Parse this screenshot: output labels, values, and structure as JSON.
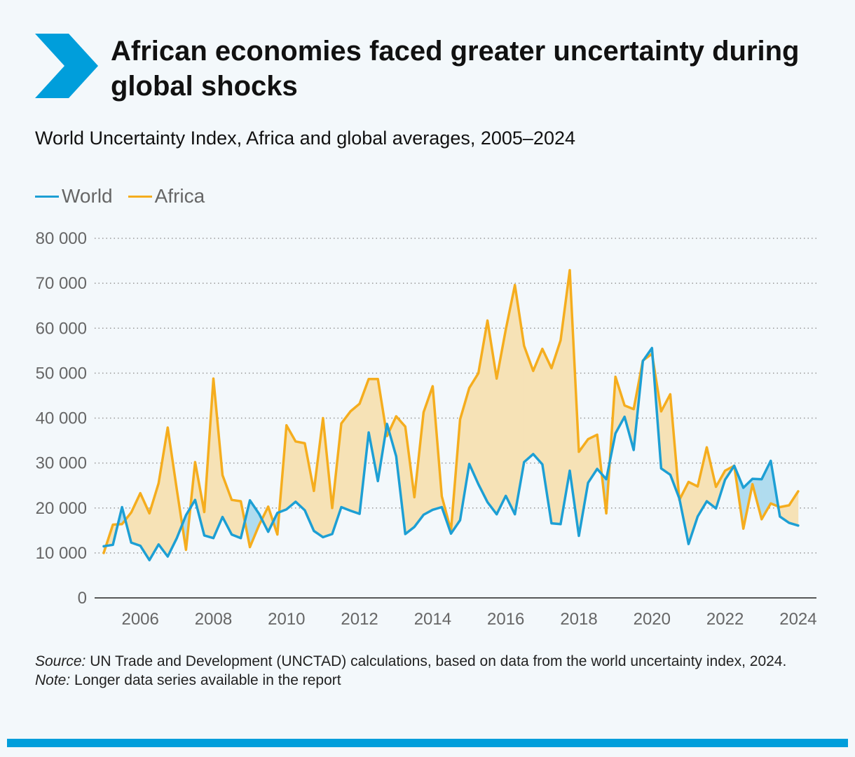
{
  "header": {
    "title": "African economies faced greater uncertainty during global shocks",
    "subtitle": "World Uncertainty Index, Africa and global averages, 2005–2024"
  },
  "colors": {
    "world": "#1d9fd4",
    "africa": "#f5ad1e",
    "africa_fill": "#f6e2b6",
    "world_fill": "#b0dcef",
    "accent": "#009edb"
  },
  "footer": {
    "source_label": "Source:",
    "source_text": " UN Trade and Development (UNCTAD) calculations, based on data from the world uncertainty index, 2024.",
    "note_label": "Note:",
    "note_text": " Longer data series available in the report"
  },
  "chart_data": {
    "type": "line",
    "title": "World Uncertainty Index, Africa and global averages, 2005–2024",
    "xlabel": "",
    "ylabel": "",
    "xlim": [
      2004.75,
      2024.5
    ],
    "ylim": [
      0,
      80000
    ],
    "yticks": [
      0,
      10000,
      20000,
      30000,
      40000,
      50000,
      60000,
      70000,
      80000
    ],
    "ytick_labels": [
      "0",
      "10 000",
      "20 000",
      "30 000",
      "40 000",
      "50 000",
      "60 000",
      "70 000",
      "80 000"
    ],
    "xticks": [
      2006,
      2008,
      2010,
      2012,
      2014,
      2016,
      2018,
      2020,
      2022,
      2024
    ],
    "xtick_labels": [
      "2006",
      "2008",
      "2010",
      "2012",
      "2014",
      "2016",
      "2018",
      "2020",
      "2022",
      "2024"
    ],
    "grid": "horizontal dotted",
    "legend_position": "top-left",
    "x": [
      2005,
      2005.25,
      2005.5,
      2005.75,
      2006,
      2006.25,
      2006.5,
      2006.75,
      2007,
      2007.25,
      2007.5,
      2007.75,
      2008,
      2008.25,
      2008.5,
      2008.75,
      2009,
      2009.25,
      2009.5,
      2009.75,
      2010,
      2010.25,
      2010.5,
      2010.75,
      2011,
      2011.25,
      2011.5,
      2011.75,
      2012,
      2012.25,
      2012.5,
      2012.75,
      2013,
      2013.25,
      2013.5,
      2013.75,
      2014,
      2014.25,
      2014.5,
      2014.75,
      2015,
      2015.25,
      2015.5,
      2015.75,
      2016,
      2016.25,
      2016.5,
      2016.75,
      2017,
      2017.25,
      2017.5,
      2017.75,
      2018,
      2018.25,
      2018.5,
      2018.75,
      2019,
      2019.25,
      2019.5,
      2019.75,
      2020,
      2020.25,
      2020.5,
      2020.75,
      2021,
      2021.25,
      2021.5,
      2021.75,
      2022,
      2022.25,
      2022.5,
      2022.75,
      2023,
      2023.25,
      2023.5,
      2023.75,
      2024
    ],
    "series": [
      {
        "name": "World",
        "values": [
          11500,
          11800,
          20200,
          12300,
          11600,
          8400,
          11900,
          9200,
          13300,
          18400,
          21800,
          13900,
          13300,
          18000,
          14100,
          13300,
          21700,
          18700,
          14700,
          18900,
          19700,
          21400,
          19500,
          14900,
          13500,
          14200,
          20200,
          19400,
          18700,
          36800,
          26000,
          38700,
          31500,
          14200,
          15800,
          18500,
          19600,
          20200,
          14300,
          17300,
          29800,
          25300,
          21300,
          18600,
          22700,
          18600,
          30200,
          32000,
          29700,
          16600,
          16400,
          28300,
          13800,
          25600,
          28700,
          26400,
          36600,
          40300,
          32900,
          52700,
          55600,
          28800,
          27400,
          22100,
          12000,
          18100,
          21500,
          19900,
          26300,
          29400,
          24500,
          26500,
          26400,
          30500,
          18100,
          16700,
          16100
        ]
      },
      {
        "name": "Africa",
        "values": [
          10000,
          16300,
          16400,
          19000,
          23300,
          18800,
          25500,
          37900,
          24100,
          10700,
          30200,
          19100,
          48800,
          27300,
          21800,
          21500,
          11300,
          16200,
          20300,
          14100,
          38400,
          34800,
          34400,
          23800,
          40000,
          20000,
          38800,
          41500,
          43200,
          48700,
          48700,
          36000,
          40400,
          38100,
          22400,
          41300,
          47100,
          22600,
          15000,
          39700,
          46700,
          50000,
          61700,
          48800,
          59700,
          69600,
          56100,
          50500,
          55400,
          51100,
          57300,
          72900,
          32500,
          35300,
          36300,
          18800,
          49200,
          42800,
          42000,
          52800,
          54300,
          41500,
          45300,
          21800,
          25800,
          24800,
          33500,
          24700,
          28300,
          29400,
          15400,
          25300,
          17500,
          21000,
          20200,
          20600,
          23700
        ]
      }
    ]
  }
}
